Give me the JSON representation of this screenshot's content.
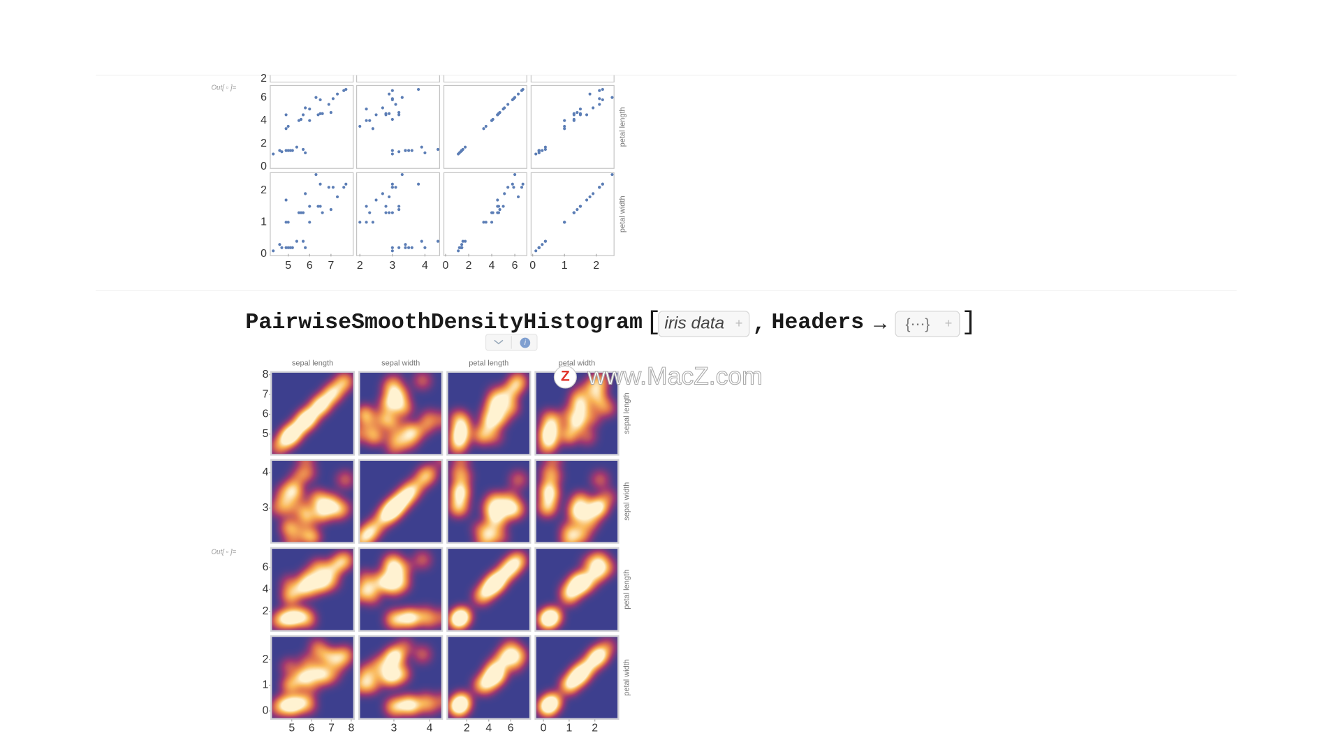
{
  "out_labels": [
    "Out[ ▫ ]=",
    "Out[ ▫ ]="
  ],
  "iris_sample": [
    [
      5.1,
      4.9,
      4.7,
      5.0,
      5.4,
      4.6,
      5.8,
      5.7,
      4.3,
      5.2,
      7.0,
      6.4,
      5.5,
      6.5,
      5.7,
      4.9,
      6.6,
      5.0,
      6.0,
      5.6,
      6.3,
      5.8,
      7.1,
      6.5,
      7.6,
      4.9,
      7.3,
      7.7,
      6.0,
      6.9
    ],
    [
      3.5,
      3.0,
      3.2,
      3.6,
      3.9,
      3.4,
      4.0,
      4.4,
      3.0,
      3.4,
      3.2,
      3.2,
      2.3,
      2.8,
      2.8,
      2.4,
      2.9,
      2.0,
      2.2,
      3.0,
      3.3,
      2.7,
      3.0,
      3.0,
      3.0,
      2.5,
      2.9,
      3.8,
      2.2,
      3.1
    ],
    [
      1.4,
      1.4,
      1.3,
      1.4,
      1.7,
      1.4,
      1.2,
      1.5,
      1.1,
      1.4,
      4.7,
      4.5,
      4.0,
      4.6,
      4.5,
      3.3,
      4.6,
      3.5,
      4.0,
      4.1,
      6.0,
      5.1,
      5.9,
      5.8,
      6.6,
      4.5,
      6.3,
      6.7,
      5.0,
      5.4
    ],
    [
      0.2,
      0.2,
      0.2,
      0.2,
      0.4,
      0.3,
      0.2,
      0.4,
      0.1,
      0.2,
      1.4,
      1.5,
      1.3,
      1.5,
      1.3,
      1.0,
      1.3,
      1.0,
      1.0,
      1.3,
      2.5,
      1.9,
      2.1,
      2.2,
      2.1,
      1.7,
      1.8,
      2.2,
      1.5,
      2.1
    ]
  ],
  "scatter_matrix": {
    "type": "scatter",
    "color": "#5b7db5",
    "partial_row_tick": 2,
    "row_labels": [
      "petal length",
      "petal width"
    ],
    "axes": [
      {
        "lim": [
          4.16,
          8.04
        ],
        "ticks": [
          5,
          6,
          7
        ]
      },
      {
        "lim": [
          1.9,
          4.45
        ],
        "ticks": [
          2,
          3,
          4
        ]
      },
      {
        "lim": [
          -0.15,
          7.04
        ],
        "ticks": [
          0,
          2,
          4,
          6
        ]
      },
      {
        "lim": [
          -0.05,
          2.56
        ],
        "ticks": [
          0,
          1,
          2
        ]
      }
    ]
  },
  "input": {
    "function": "PairwiseSmoothDensityHistogram",
    "open": "[",
    "arg": "iris data",
    "sep": ",",
    "option": "Headers",
    "arrow": "→",
    "value": "{⋯}",
    "close": "]"
  },
  "watermark": {
    "logo": "Z",
    "text": "www.MacZ.com"
  },
  "density_matrix": {
    "type": "density",
    "headers": [
      "sepal length",
      "sepal width",
      "petal length",
      "petal width"
    ],
    "axes": [
      {
        "lim": [
          4.0,
          8.1
        ],
        "ticks": [
          5,
          6,
          7,
          8
        ]
      },
      {
        "lim": [
          2.05,
          4.33
        ],
        "ticks": [
          3,
          4
        ]
      },
      {
        "lim": [
          0.3,
          7.7
        ],
        "ticks": [
          2,
          4,
          6
        ]
      },
      {
        "lim": [
          -0.28,
          2.88
        ],
        "ticks": [
          0,
          1,
          2
        ]
      }
    ]
  }
}
